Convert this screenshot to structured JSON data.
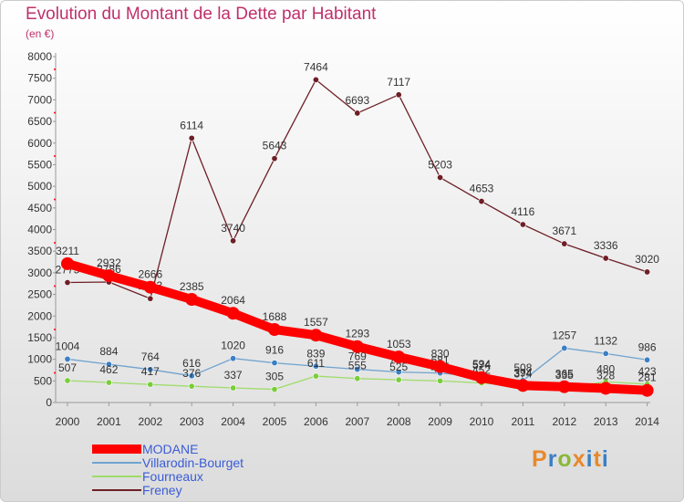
{
  "title": "Evolution du Montant de la Dette par Habitant",
  "subtitle": "(en €)",
  "brand": {
    "text": "Proxiti",
    "colors": [
      "#e8892b",
      "#3b7fc4",
      "#8ab83a",
      "#e8892b",
      "#3b7fc4",
      "#e8892b",
      "#3b7fc4"
    ]
  },
  "chart_data": {
    "type": "line",
    "x": [
      2000,
      2001,
      2002,
      2003,
      2004,
      2005,
      2006,
      2007,
      2008,
      2009,
      2010,
      2011,
      2012,
      2013,
      2014
    ],
    "ylim": [
      0,
      8000
    ],
    "yticks": [
      0,
      500,
      1000,
      1500,
      2000,
      2500,
      3000,
      3500,
      4000,
      4500,
      5000,
      5500,
      6000,
      6500,
      7000,
      7500,
      8000
    ],
    "grid": false,
    "legend_position": "bottom-left",
    "series": [
      {
        "name": "Freney",
        "color": "#6e1f26",
        "marker": "#6e1f26",
        "values": [
          2775,
          2786,
          2403,
          6114,
          3740,
          5643,
          7464,
          6693,
          7117,
          5203,
          4653,
          4116,
          3671,
          3336,
          3020
        ]
      },
      {
        "name": "Villarodin-Bourget",
        "color": "#6fa3cf",
        "marker": "#3b7fc4",
        "values": [
          1004,
          884,
          764,
          616,
          1020,
          916,
          839,
          769,
          705,
          681,
          594,
          508,
          1257,
          1132,
          986
        ]
      },
      {
        "name": "Fourneaux",
        "color": "#9edc6a",
        "marker": "#7acd3a",
        "values": [
          507,
          462,
          417,
          376,
          337,
          305,
          611,
          555,
          525,
          499,
          452,
          374,
          335,
          480,
          423
        ]
      },
      {
        "name": "MODANE",
        "color": "#ff0000",
        "marker": "#ff0000",
        "values": [
          3211,
          2932,
          2666,
          2385,
          2064,
          1688,
          1557,
          1293,
          1053,
          830,
          574,
          394,
          365,
          328,
          281
        ]
      }
    ]
  }
}
